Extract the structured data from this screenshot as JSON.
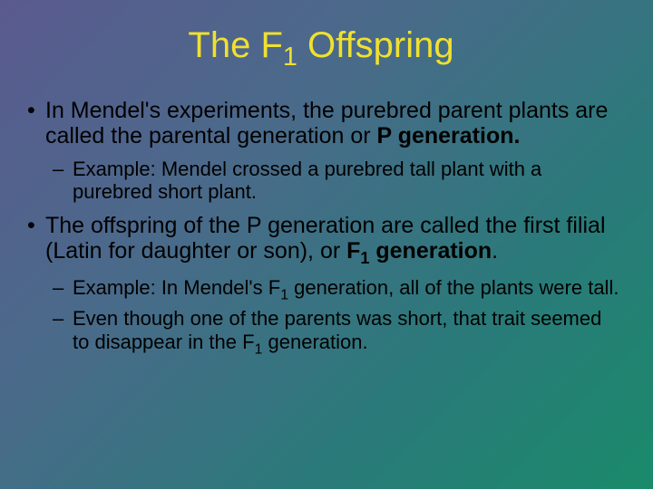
{
  "title_color": "#f0e030",
  "body_text_color": "#000000",
  "background_gradient": [
    "#5a5a8f",
    "#4a6a8a",
    "#2a7a7a",
    "#1a8a6a"
  ],
  "title": {
    "pre": "The F",
    "sub": "1",
    "post": " Offspring"
  },
  "bullets": [
    {
      "main": {
        "plain1": "In Mendel's experiments, the purebred parent plants are called the parental generation or ",
        "bold1": "P generation."
      },
      "sub_items": [
        {
          "text": "Example: Mendel crossed a purebred tall plant with a purebred short plant."
        }
      ]
    },
    {
      "main": {
        "plain1": "The offspring of the P generation are called the first filial (Latin for daughter or son), or ",
        "bold_pre": "F",
        "bold_sub": "1",
        "bold_post": " generation"
      },
      "sub_items": [
        {
          "pre": "Example: In Mendel's F",
          "sub": "1",
          "post": " generation, all of the plants were tall."
        },
        {
          "pre": "Even though one of the parents was short, that trait seemed to disappear in the F",
          "sub": "1",
          "post": " generation."
        }
      ]
    }
  ]
}
